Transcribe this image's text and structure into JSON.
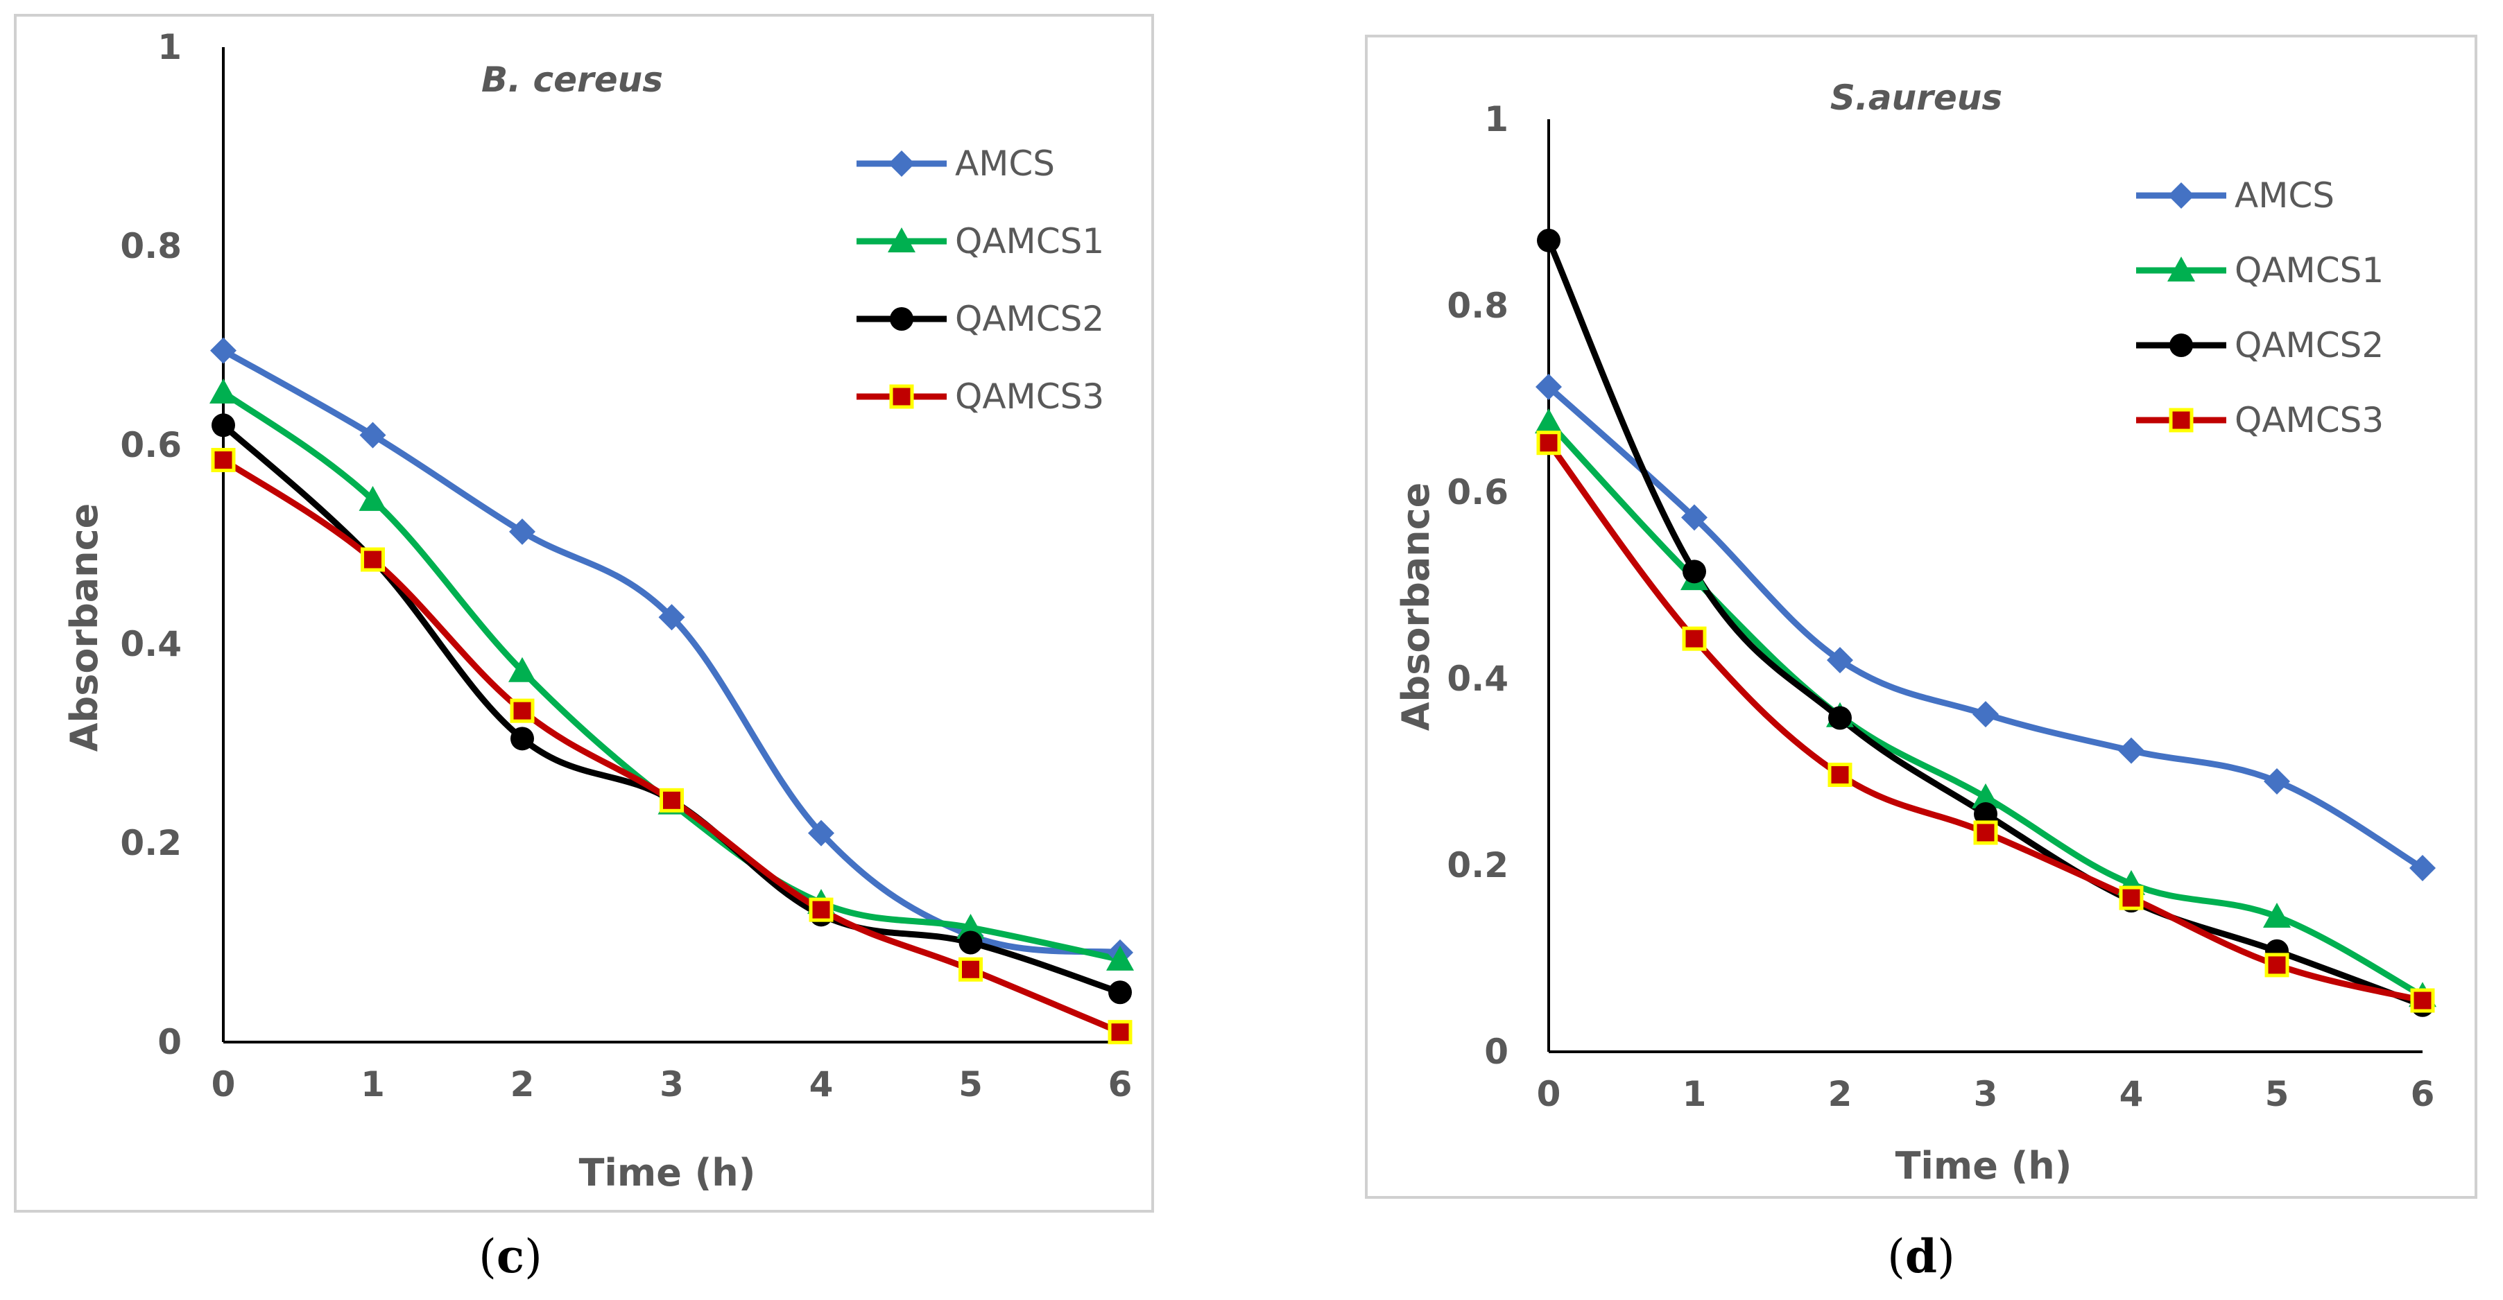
{
  "chart_data": [
    {
      "type": "line",
      "title": "B. cereus",
      "xlabel": "Time (h)",
      "ylabel": "Absorbance",
      "x": [
        0,
        1,
        2,
        3,
        4,
        5,
        6
      ],
      "xlim": [
        0,
        6
      ],
      "ylim": [
        0,
        1
      ],
      "yticks": [
        "0",
        "0.2",
        "0.4",
        "0.6",
        "0.8",
        "1"
      ],
      "ytick_values": [
        0,
        0.2,
        0.4,
        0.6,
        0.8,
        1
      ],
      "xticks": [
        "0",
        "1",
        "2",
        "3",
        "4",
        "5",
        "6"
      ],
      "grid": false,
      "legend_position": "top-right",
      "panel_label": "c",
      "series": [
        {
          "name": "AMCS",
          "color": "#4472c4",
          "marker": "diamond",
          "values": [
            0.695,
            0.61,
            0.513,
            0.427,
            0.21,
            0.107,
            0.09
          ]
        },
        {
          "name": "QAMCS1",
          "color": "#00b050",
          "marker": "triangle",
          "values": [
            0.653,
            0.545,
            0.373,
            0.24,
            0.14,
            0.115,
            0.083
          ]
        },
        {
          "name": "QAMCS2",
          "color": "#000000",
          "marker": "circle",
          "values": [
            0.62,
            0.485,
            0.305,
            0.243,
            0.128,
            0.1,
            0.05
          ]
        },
        {
          "name": "QAMCS3",
          "color": "#c00000",
          "marker": "square",
          "marker_edge": "#ffff00",
          "values": [
            0.585,
            0.485,
            0.333,
            0.243,
            0.133,
            0.073,
            0.01
          ]
        }
      ]
    },
    {
      "type": "line",
      "title": "S.aureus",
      "xlabel": "Time (h)",
      "ylabel": "Absorbance",
      "x": [
        0,
        1,
        2,
        3,
        4,
        5,
        6
      ],
      "xlim": [
        0,
        6
      ],
      "ylim": [
        0,
        1
      ],
      "yticks": [
        "0",
        "0.2",
        "0.4",
        "0.6",
        "0.8",
        "1"
      ],
      "ytick_values": [
        0,
        0.2,
        0.4,
        0.6,
        0.8,
        1
      ],
      "xticks": [
        "0",
        "1",
        "2",
        "3",
        "4",
        "5",
        "6"
      ],
      "grid": false,
      "legend_position": "top-right",
      "panel_label": "d",
      "series": [
        {
          "name": "AMCS",
          "color": "#4472c4",
          "marker": "diamond",
          "values": [
            0.713,
            0.573,
            0.42,
            0.362,
            0.323,
            0.29,
            0.197
          ]
        },
        {
          "name": "QAMCS1",
          "color": "#00b050",
          "marker": "triangle",
          "values": [
            0.675,
            0.507,
            0.36,
            0.273,
            0.18,
            0.145,
            0.06
          ]
        },
        {
          "name": "QAMCS2",
          "color": "#000000",
          "marker": "circle",
          "values": [
            0.87,
            0.515,
            0.358,
            0.255,
            0.162,
            0.108,
            0.05
          ]
        },
        {
          "name": "QAMCS3",
          "color": "#c00000",
          "marker": "square",
          "marker_edge": "#ffff00",
          "values": [
            0.653,
            0.443,
            0.297,
            0.235,
            0.165,
            0.093,
            0.055
          ]
        }
      ]
    }
  ]
}
